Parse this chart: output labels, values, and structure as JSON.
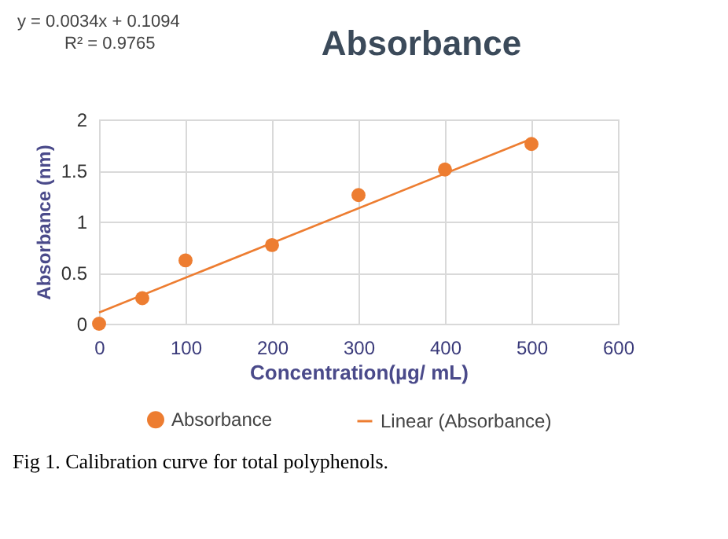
{
  "chart_data": {
    "type": "scatter",
    "title": "Absorbance",
    "xlabel": "Concentration(µg/ mL)",
    "ylabel": "Absorbance (nm)",
    "series": [
      {
        "name": "Absorbance",
        "color": "#ed7d31",
        "marker": "circle",
        "x": [
          0,
          50,
          100,
          200,
          300,
          400,
          500
        ],
        "values": [
          0,
          0.25,
          0.62,
          0.77,
          1.26,
          1.51,
          1.76
        ]
      },
      {
        "name": "Linear (Absorbance)",
        "type": "line",
        "color": "#ed7d31",
        "x": [
          0,
          500
        ],
        "values": [
          0.11,
          1.81
        ]
      }
    ],
    "xlim": [
      0,
      600
    ],
    "xticks": [
      0,
      100,
      200,
      300,
      400,
      500,
      600
    ],
    "ylim": [
      0,
      2
    ],
    "yticks": [
      0,
      0.5,
      1,
      1.5,
      2
    ],
    "grid": true,
    "legend": "bottom",
    "annotations": [
      "y = 0.0034x + 0.1094",
      "R² = 0.9765",
      "Fig 1. Calibration curve for total polyphenols."
    ]
  }
}
